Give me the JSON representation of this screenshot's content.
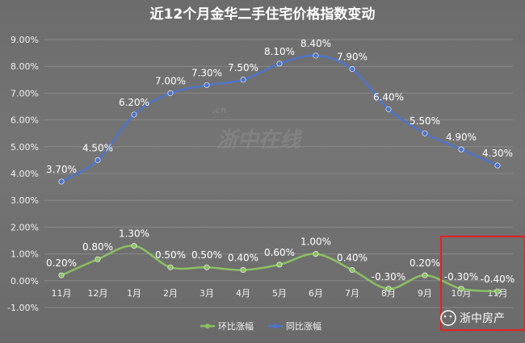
{
  "chart_data": {
    "type": "line",
    "title": "近12个月金华二手住宅价格指数变动",
    "categories": [
      "11月",
      "12月",
      "1月",
      "2月",
      "3月",
      "4月",
      "5月",
      "6月",
      "7月",
      "8月",
      "9月",
      "10月",
      "11月"
    ],
    "series": [
      {
        "name": "同比涨幅",
        "color": "#4f74c9",
        "values": [
          3.7,
          4.5,
          6.2,
          7.0,
          7.3,
          7.5,
          8.1,
          8.4,
          7.9,
          6.4,
          5.5,
          4.9,
          4.3
        ],
        "labels": [
          "3.70%",
          "4.50%",
          "6.20%",
          "7.00%",
          "7.30%",
          "7.50%",
          "8.10%",
          "8.40%",
          "7.90%",
          "6.40%",
          "5.50%",
          "4.90%",
          "4.30%"
        ]
      },
      {
        "name": "环比涨幅",
        "color": "#8cc063",
        "values": [
          0.2,
          0.8,
          1.3,
          0.5,
          0.5,
          0.4,
          0.6,
          1.0,
          0.4,
          -0.3,
          0.2,
          -0.3,
          -0.4
        ],
        "labels": [
          "0.20%",
          "0.80%",
          "1.30%",
          "0.50%",
          "0.50%",
          "0.40%",
          "0.60%",
          "1.00%",
          "0.40%",
          "-0.30%",
          "0.20%",
          "-0.30%",
          "-0.40%"
        ]
      }
    ],
    "ylim": [
      -1,
      9
    ],
    "y_ticks": [
      -1,
      0,
      1,
      2,
      3,
      4,
      5,
      6,
      7,
      8,
      9
    ],
    "y_tick_labels": [
      "-1.00%",
      "0.00%",
      "1.00%",
      "2.00%",
      "3.00%",
      "4.00%",
      "5.00%",
      "6.00%",
      "7.00%",
      "8.00%",
      "9.00%"
    ],
    "grid": true,
    "legend": [
      "环比涨幅",
      "同比涨幅"
    ],
    "legend_position": "bottom",
    "highlight": {
      "from_index": 11,
      "to_index": 12,
      "color": "#e02424"
    }
  },
  "watermark": {
    "text": "浙中在线",
    "suffix": ".cn"
  },
  "brand": {
    "text": "浙中房产"
  }
}
